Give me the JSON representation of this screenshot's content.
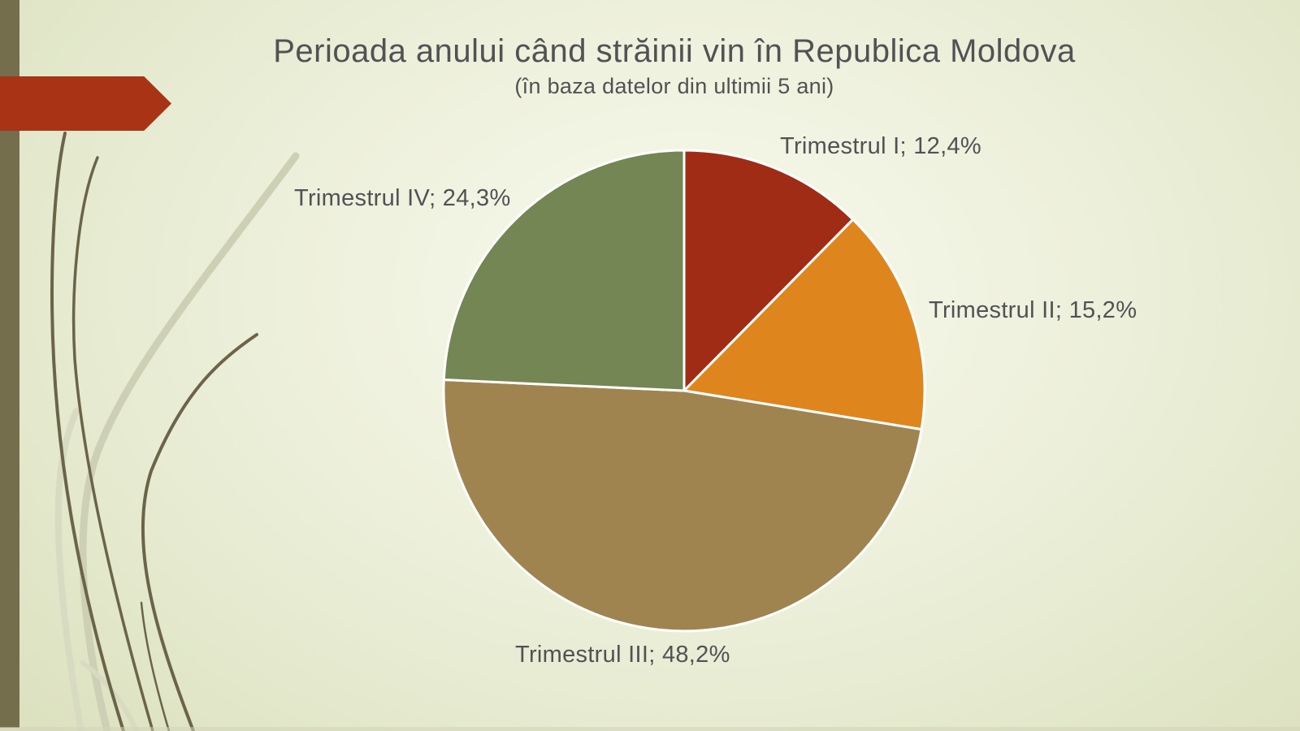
{
  "slide": {
    "title": "Perioada anului când străinii vin în Republica Moldova",
    "subtitle": "(în baza datelor din ultimii 5 ani)"
  },
  "colors": {
    "title_text": "#515254",
    "label_text": "#515254",
    "left_bar": "#746E4C",
    "arrow": "#A83415",
    "grass_dark": "#6B6448",
    "grass_light": "#CDD0B4",
    "bg_center": "#F8FAEE",
    "bg_edge": "#DCE1C0",
    "slice_border": "#FFFFFF"
  },
  "chart_data": {
    "type": "pie",
    "title": "Perioada anului când străinii vin în Republica Moldova",
    "subtitle": "(în baza datelor din ultimii 5 ani)",
    "unit": "%",
    "start_angle_deg": 0,
    "direction": "clockwise",
    "legend": "none",
    "labels_position": "outside",
    "slices": [
      {
        "name": "Trimestrul I",
        "value": 12.4,
        "display": "12,4%",
        "label_text": "Trimestrul I; 12,4%",
        "color": "#A02C15"
      },
      {
        "name": "Trimestrul II",
        "value": 15.2,
        "display": "15,2%",
        "label_text": "Trimestrul II; 15,2%",
        "color": "#DE861D"
      },
      {
        "name": "Trimestrul III",
        "value": 48.2,
        "display": "48,2%",
        "label_text": "Trimestrul III; 48,2%",
        "color": "#A08450"
      },
      {
        "name": "Trimestrul IV",
        "value": 24.3,
        "display": "24,3%",
        "label_text": "Trimestrul IV; 24,3%",
        "color": "#738653"
      }
    ]
  }
}
